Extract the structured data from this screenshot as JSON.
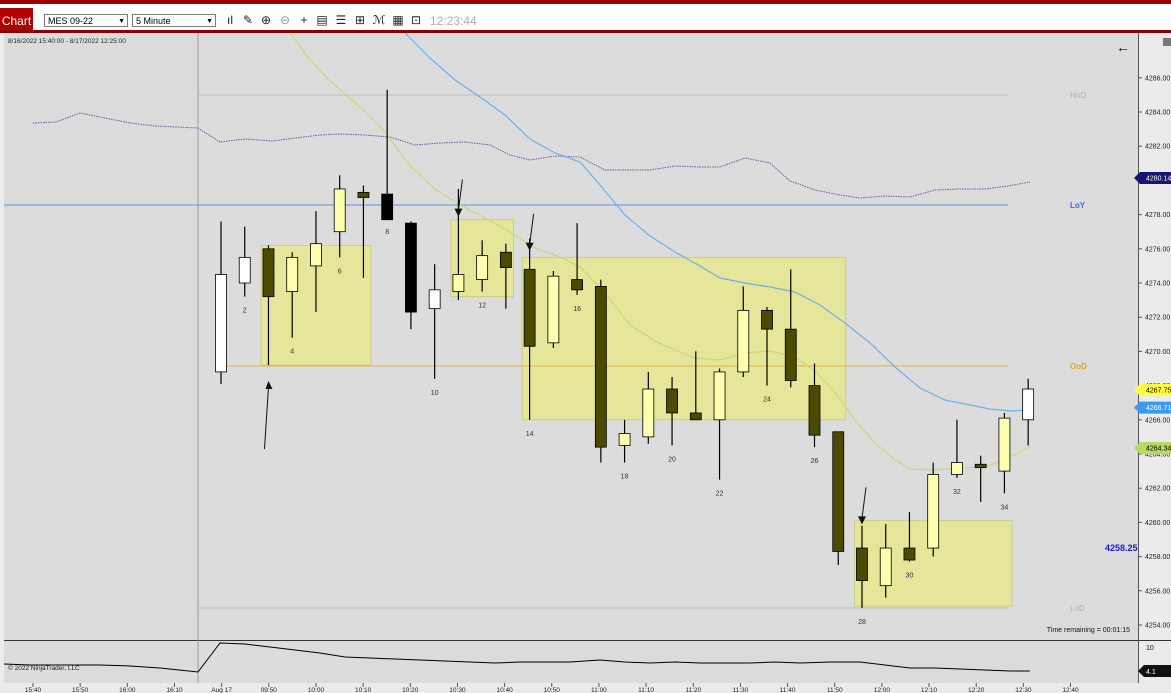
{
  "toolbar": {
    "tab_label": "Chart",
    "instrument": "MES 09-22",
    "interval": "5 Minute",
    "clock": "12:23:44",
    "icons": [
      "bar-type-icon",
      "draw-pencil-icon",
      "zoom-in-icon",
      "zoom-out-icon",
      "crosshair-icon",
      "data-box-icon",
      "properties-icon",
      "strategies-icon",
      "indicators-icon",
      "templates-icon",
      "window-linking-icon"
    ]
  },
  "chart": {
    "date_range": "8/16/2022 15:40:00 - 8/17/2022 12:25:00",
    "copyright": "© 2022 NinjaTrader, LLC",
    "time_remaining": "Time remaining = 00:01:15",
    "price_label": "4258.25",
    "level_labels": {
      "hod": "HoD",
      "loy": "LoY",
      "ood": "OoD",
      "lod": "LoD"
    },
    "price_ticks": [
      "4286.00",
      "4284.00",
      "4282.00",
      "4280.00",
      "4278.00",
      "4276.00",
      "4274.00",
      "4272.00",
      "4270.00",
      "4268.00",
      "4266.00",
      "4264.00",
      "4262.00",
      "4260.00",
      "4258.00",
      "4256.00",
      "4254.00"
    ],
    "price_markers": [
      {
        "value": "4280.14",
        "color": "#16166e",
        "text_color": "#ffffff"
      },
      {
        "value": "4267.75",
        "color": "#ffff40",
        "text_color": "#000000"
      },
      {
        "value": "4266.71",
        "color": "#3a9af0",
        "text_color": "#ffffff"
      },
      {
        "value": "4264.34",
        "color": "#b8d860",
        "text_color": "#000000"
      }
    ],
    "time_ticks": [
      "15:40",
      "15:50",
      "16:00",
      "16:10",
      "Aug 17",
      "09:50",
      "10:00",
      "10:10",
      "10:20",
      "10:30",
      "10:40",
      "10:50",
      "11:00",
      "11:10",
      "11:20",
      "11:30",
      "11:40",
      "11:50",
      "12:00",
      "12:10",
      "12:20",
      "12:30",
      "12:40"
    ],
    "bar_numbers": [
      "2",
      "4",
      "6",
      "8",
      "10",
      "12",
      "14",
      "16",
      "18",
      "20",
      "22",
      "24",
      "26",
      "28",
      "30",
      "32",
      "34"
    ],
    "sub_panel": {
      "ticks": [
        "10"
      ],
      "marker": "4.1"
    }
  },
  "chart_data": {
    "type": "candlestick",
    "instrument": "MES 09-22",
    "interval": "5 Minute",
    "ylim": [
      4253,
      4288
    ],
    "levels": {
      "HoD": 4285.2,
      "LoY": 4278.9,
      "OoD": 4269.2,
      "LoD": 4255.1
    },
    "candles": [
      {
        "n": 1,
        "time": "09:35",
        "o": 4268.8,
        "h": 4277.6,
        "l": 4268.1,
        "c": 4274.5
      },
      {
        "n": 2,
        "time": "09:40",
        "o": 4274.0,
        "h": 4277.3,
        "l": 4273.2,
        "c": 4275.5
      },
      {
        "n": 3,
        "time": "09:45",
        "o": 4276.0,
        "h": 4276.2,
        "l": 4269.2,
        "c": 4273.2
      },
      {
        "n": 4,
        "time": "09:50",
        "o": 4273.5,
        "h": 4275.8,
        "l": 4270.8,
        "c": 4275.5
      },
      {
        "n": 5,
        "time": "09:55",
        "o": 4275.0,
        "h": 4278.2,
        "l": 4272.3,
        "c": 4276.3
      },
      {
        "n": 6,
        "time": "10:00",
        "o": 4277.0,
        "h": 4280.3,
        "l": 4275.5,
        "c": 4279.5
      },
      {
        "n": 7,
        "time": "10:05",
        "o": 4279.3,
        "h": 4279.7,
        "l": 4274.3,
        "c": 4279.0
      },
      {
        "n": 8,
        "time": "10:10",
        "o": 4279.2,
        "h": 4285.3,
        "l": 4277.8,
        "c": 4277.7
      },
      {
        "n": 9,
        "time": "10:15",
        "o": 4277.5,
        "h": 4277.6,
        "l": 4271.3,
        "c": 4272.3
      },
      {
        "n": 10,
        "time": "10:20",
        "o": 4272.5,
        "h": 4275.1,
        "l": 4268.4,
        "c": 4273.6
      },
      {
        "n": 11,
        "time": "10:25",
        "o": 4273.5,
        "h": 4279.5,
        "l": 4273.0,
        "c": 4274.5
      },
      {
        "n": 12,
        "time": "10:30",
        "o": 4274.2,
        "h": 4276.5,
        "l": 4273.5,
        "c": 4275.6
      },
      {
        "n": 13,
        "time": "10:35",
        "o": 4275.8,
        "h": 4276.3,
        "l": 4272.5,
        "c": 4274.9
      },
      {
        "n": 14,
        "time": "10:40",
        "o": 4274.8,
        "h": 4276.6,
        "l": 4266.0,
        "c": 4270.3
      },
      {
        "n": 15,
        "time": "10:45",
        "o": 4270.5,
        "h": 4274.7,
        "l": 4270.2,
        "c": 4274.4
      },
      {
        "n": 16,
        "time": "10:50",
        "o": 4274.2,
        "h": 4277.5,
        "l": 4273.3,
        "c": 4273.6
      },
      {
        "n": 17,
        "time": "10:55",
        "o": 4273.8,
        "h": 4274.2,
        "l": 4263.5,
        "c": 4264.4
      },
      {
        "n": 18,
        "time": "11:00",
        "o": 4264.5,
        "h": 4266.0,
        "l": 4263.5,
        "c": 4265.2
      },
      {
        "n": 19,
        "time": "11:05",
        "o": 4265.0,
        "h": 4268.8,
        "l": 4264.6,
        "c": 4267.8
      },
      {
        "n": 20,
        "time": "11:10",
        "o": 4267.8,
        "h": 4268.5,
        "l": 4264.5,
        "c": 4266.4
      },
      {
        "n": 21,
        "time": "11:15",
        "o": 4266.4,
        "h": 4270.0,
        "l": 4266.0,
        "c": 4266.0
      },
      {
        "n": 22,
        "time": "11:20",
        "o": 4266.0,
        "h": 4269.0,
        "l": 4262.5,
        "c": 4268.8
      },
      {
        "n": 23,
        "time": "11:25",
        "o": 4268.8,
        "h": 4273.8,
        "l": 4268.5,
        "c": 4272.4
      },
      {
        "n": 24,
        "time": "11:30",
        "o": 4272.4,
        "h": 4272.6,
        "l": 4268.0,
        "c": 4271.3
      },
      {
        "n": 25,
        "time": "11:35",
        "o": 4271.3,
        "h": 4274.8,
        "l": 4267.9,
        "c": 4268.3
      },
      {
        "n": 26,
        "time": "11:40",
        "o": 4268.0,
        "h": 4269.3,
        "l": 4264.4,
        "c": 4265.1
      },
      {
        "n": 27,
        "time": "11:45",
        "o": 4265.3,
        "h": 4265.3,
        "l": 4257.5,
        "c": 4258.3
      },
      {
        "n": 28,
        "time": "11:50",
        "o": 4258.5,
        "h": 4259.8,
        "l": 4255.0,
        "c": 4256.6
      },
      {
        "n": 29,
        "time": "11:55",
        "o": 4256.3,
        "h": 4259.9,
        "l": 4255.6,
        "c": 4258.5
      },
      {
        "n": 30,
        "time": "12:00",
        "o": 4258.5,
        "h": 4260.6,
        "l": 4257.7,
        "c": 4257.8
      },
      {
        "n": 31,
        "time": "12:05",
        "o": 4258.5,
        "h": 4263.5,
        "l": 4258.0,
        "c": 4262.8
      },
      {
        "n": 32,
        "time": "12:10",
        "o": 4262.8,
        "h": 4266.0,
        "l": 4262.6,
        "c": 4263.5
      },
      {
        "n": 33,
        "time": "12:15",
        "o": 4263.4,
        "h": 4263.9,
        "l": 4261.2,
        "c": 4263.2
      },
      {
        "n": 34,
        "time": "12:20",
        "o": 4263.0,
        "h": 4266.4,
        "l": 4261.7,
        "c": 4266.1
      },
      {
        "n": 35,
        "time": "12:25",
        "o": 4266.0,
        "h": 4268.4,
        "l": 4264.5,
        "c": 4267.8
      }
    ],
    "zones": [
      {
        "from_bar": 3,
        "to_bar": 7,
        "top": 4276.2,
        "bottom": 4269.2
      },
      {
        "from_bar": 11,
        "to_bar": 13,
        "top": 4277.7,
        "bottom": 4273.2
      },
      {
        "from_bar": 14,
        "to_bar": 27,
        "top": 4275.5,
        "bottom": 4266.0
      },
      {
        "from_bar": 28,
        "to_bar": 34,
        "top": 4260.1,
        "bottom": 4255.1
      }
    ],
    "arrows": [
      {
        "bar": 3,
        "direction": "up",
        "price": 4268.5
      },
      {
        "bar": 11,
        "direction": "down",
        "price": 4278.0
      },
      {
        "bar": 14,
        "direction": "down",
        "price": 4276.0
      },
      {
        "bar": 28,
        "direction": "down",
        "price": 4260.0
      }
    ]
  }
}
